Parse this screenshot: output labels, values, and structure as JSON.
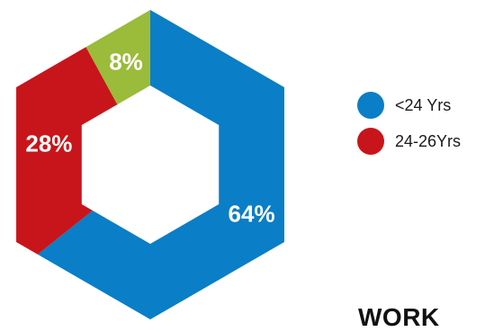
{
  "chart_data": {
    "type": "pie",
    "shape": "hexagonal-donut",
    "slices": [
      {
        "label": "<24 Yrs",
        "value": 64,
        "display": "64%",
        "color": "#0a7ec6"
      },
      {
        "label": "24-26Yrs",
        "value": 28,
        "display": "28%",
        "color": "#c8151b"
      },
      {
        "label": "",
        "value": 8,
        "display": "8%",
        "color": "#9bbb3a"
      }
    ],
    "legend": {
      "placement": "right",
      "entries": [
        {
          "label": "<24 Yrs",
          "color": "#0a7ec6"
        },
        {
          "label": "24-26Yrs",
          "color": "#c8151b"
        }
      ]
    }
  },
  "footer": {
    "text": "WORK"
  }
}
